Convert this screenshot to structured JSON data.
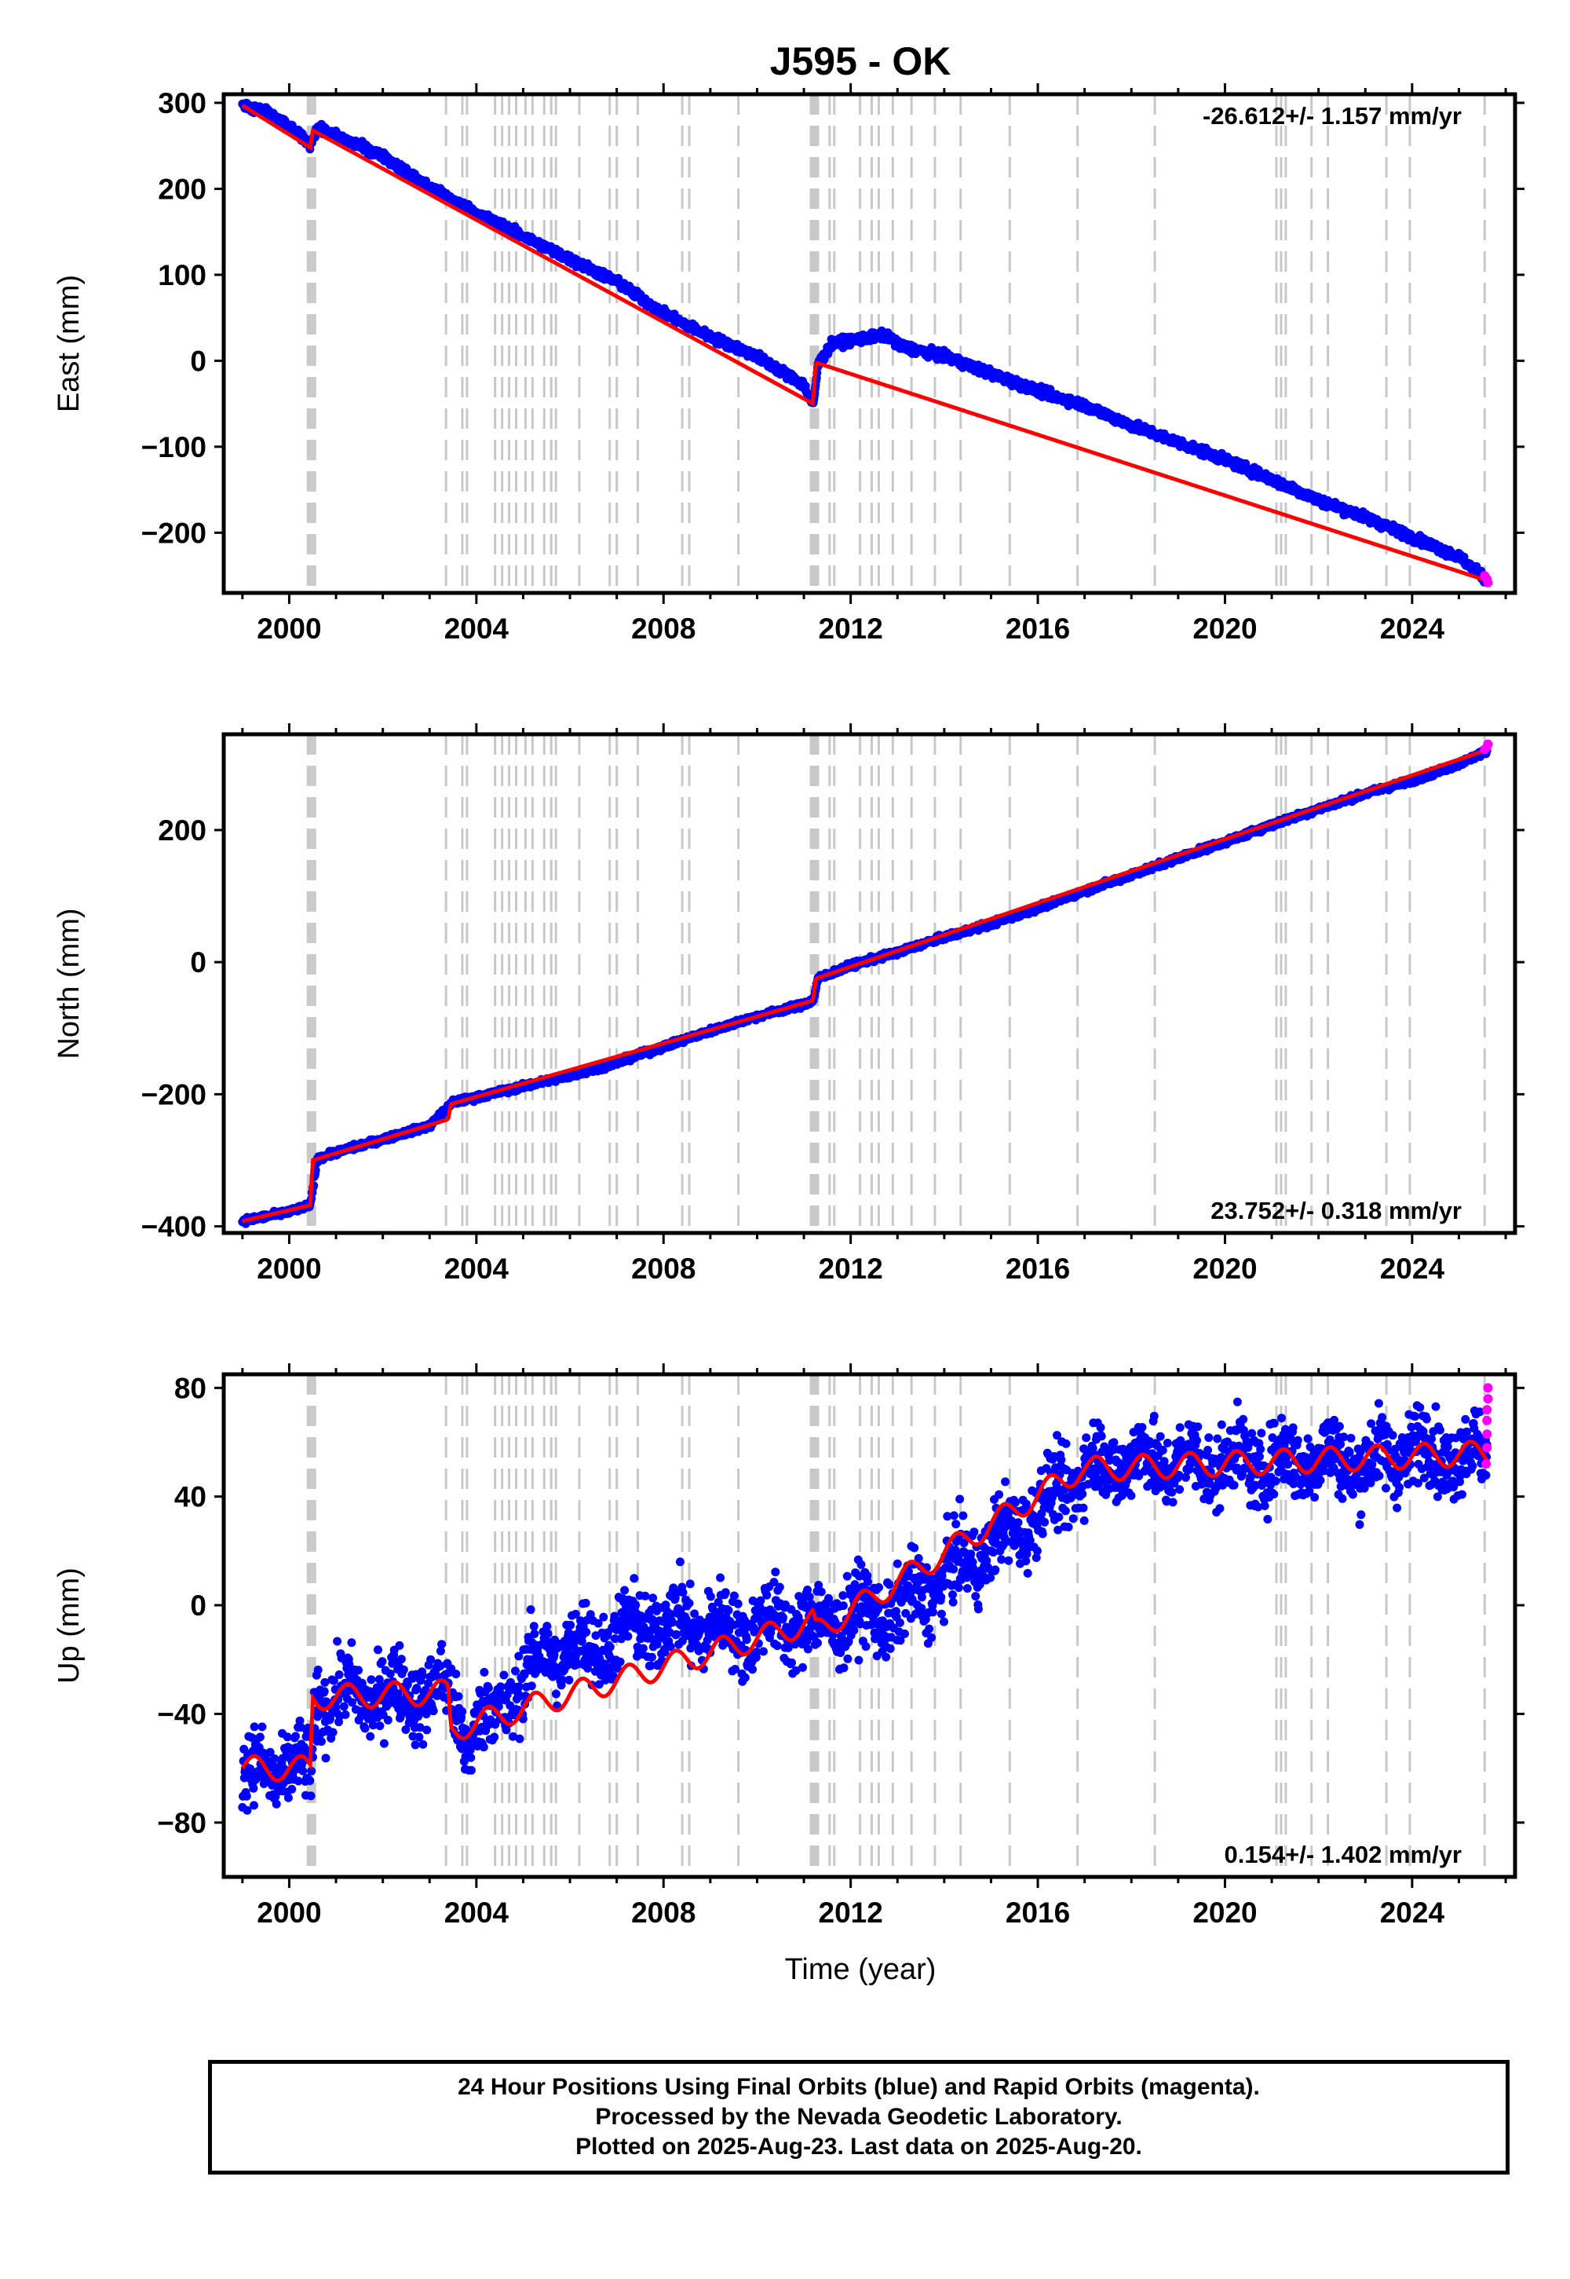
{
  "title": "J595 - OK",
  "xlabel": "Time (year)",
  "colors": {
    "final": "#0000ff",
    "rapid": "#ff00ff",
    "model": "#ff0000",
    "steps": "#c8c8c8"
  },
  "x_ticks": [
    "2000",
    "2004",
    "2008",
    "2012",
    "2016",
    "2020",
    "2024"
  ],
  "footer": {
    "line1": "24 Hour Positions Using Final Orbits (blue) and Rapid Orbits (magenta).",
    "line2": "Processed by the Nevada Geodetic Laboratory.",
    "line3": "Plotted on 2025-Aug-23. Last data on 2025-Aug-20."
  },
  "chart_data": [
    {
      "type": "scatter",
      "panel": "East",
      "title": "J595 - OK",
      "xlabel": "",
      "ylabel": "East (mm)",
      "xlim": [
        1998.6,
        2026.2
      ],
      "ylim": [
        -270,
        310
      ],
      "yticks": [
        "300",
        "200",
        "100",
        "0",
        "−100",
        "−200"
      ],
      "rate_label": "-26.612+/- 1.157 mm/yr",
      "rate_position": "top-right",
      "series": [
        {
          "name": "Final Orbits (blue)",
          "x": [
            1999.0,
            1999.5,
            2000.0,
            2000.45,
            2000.6,
            2001.0,
            2002.0,
            2003.0,
            2004.0,
            2005.0,
            2006.0,
            2007.0,
            2008.0,
            2009.0,
            2010.0,
            2011.0,
            2011.2,
            2011.3,
            2011.6,
            2012.0,
            2012.8,
            2013.0,
            2014.0,
            2015.0,
            2016.0,
            2017.0,
            2018.0,
            2019.0,
            2020.0,
            2021.0,
            2022.0,
            2023.0,
            2024.0,
            2025.0,
            2025.6
          ],
          "values": [
            298,
            290,
            272,
            252,
            270,
            262,
            238,
            202,
            172,
            145,
            118,
            92,
            55,
            28,
            5,
            -28,
            -52,
            -5,
            20,
            24,
            30,
            18,
            5,
            -15,
            -35,
            -52,
            -75,
            -95,
            -115,
            -138,
            -162,
            -182,
            -205,
            -228,
            -255
          ]
        },
        {
          "name": "Rapid Orbits (magenta)",
          "x": [
            2025.55,
            2025.6,
            2025.62
          ],
          "values": [
            -250,
            -254,
            -258
          ]
        },
        {
          "name": "Model",
          "x": [
            1999.0,
            2000.45,
            2000.5,
            2011.2,
            2011.25,
            2025.62
          ],
          "values": [
            297,
            248,
            268,
            -50,
            -2,
            -256
          ]
        }
      ]
    },
    {
      "type": "scatter",
      "panel": "North",
      "xlabel": "",
      "ylabel": "North (mm)",
      "xlim": [
        1998.6,
        2026.2
      ],
      "ylim": [
        -410,
        345
      ],
      "yticks": [
        "200",
        "0",
        "−200",
        "−400"
      ],
      "rate_label": "23.752+/- 0.318 mm/yr",
      "rate_position": "bottom-right",
      "series": [
        {
          "name": "Final Orbits (blue)",
          "x": [
            1999.0,
            2000.0,
            2000.45,
            2000.6,
            2001.0,
            2002.0,
            2003.0,
            2003.5,
            2004.0,
            2005.0,
            2006.0,
            2007.0,
            2008.0,
            2009.0,
            2010.0,
            2011.0,
            2011.2,
            2011.3,
            2012.0,
            2013.0,
            2014.0,
            2015.0,
            2016.0,
            2017.0,
            2018.0,
            2019.0,
            2020.0,
            2021.0,
            2022.0,
            2023.0,
            2024.0,
            2025.0,
            2025.6
          ],
          "values": [
            -392,
            -378,
            -368,
            -298,
            -288,
            -268,
            -248,
            -212,
            -205,
            -188,
            -172,
            -152,
            -128,
            -104,
            -82,
            -64,
            -58,
            -25,
            -5,
            15,
            38,
            58,
            82,
            108,
            132,
            158,
            182,
            208,
            232,
            255,
            275,
            300,
            320
          ]
        },
        {
          "name": "Rapid Orbits (magenta)",
          "x": [
            2025.55,
            2025.6,
            2025.62
          ],
          "values": [
            322,
            326,
            330
          ]
        },
        {
          "name": "Model",
          "x": [
            1999.0,
            2000.45,
            2000.5,
            2003.4,
            2003.45,
            2011.2,
            2011.25,
            2025.62
          ],
          "values": [
            -392,
            -368,
            -300,
            -238,
            -215,
            -58,
            -25,
            322
          ]
        }
      ]
    },
    {
      "type": "scatter",
      "panel": "Up",
      "xlabel": "Time (year)",
      "ylabel": "Up (mm)",
      "xlim": [
        1998.6,
        2026.2
      ],
      "ylim": [
        -100,
        85
      ],
      "yticks": [
        "80",
        "40",
        "0",
        "−40",
        "−80"
      ],
      "rate_label": "0.154+/- 1.402 mm/yr",
      "rate_position": "bottom-right",
      "series": [
        {
          "name": "Final Orbits (blue)",
          "x": [
            1999.0,
            2000.0,
            2000.45,
            2000.6,
            2002.0,
            2003.4,
            2003.8,
            2004.5,
            2005.5,
            2006.5,
            2007.5,
            2008.5,
            2009.5,
            2010.5,
            2011.2,
            2012.0,
            2013.0,
            2014.0,
            2015.0,
            2016.0,
            2017.0,
            2018.0,
            2019.0,
            2020.0,
            2021.0,
            2022.0,
            2023.0,
            2024.0,
            2025.0,
            2025.6
          ],
          "values": [
            -62,
            -60,
            -62,
            -34,
            -33,
            -32,
            -48,
            -38,
            -18,
            -15,
            -8,
            -6,
            -10,
            -6,
            -8,
            -4,
            -2,
            10,
            22,
            35,
            50,
            54,
            52,
            53,
            52,
            55,
            52,
            58,
            55,
            56
          ]
        },
        {
          "name": "Rapid Orbits (magenta)",
          "x": [
            2025.58,
            2025.6,
            2025.6,
            2025.6,
            2025.6,
            2025.62,
            2025.62
          ],
          "values": [
            52,
            58,
            63,
            68,
            72,
            76,
            80
          ]
        },
        {
          "name": "Model",
          "x": [
            1999.0,
            2000.45,
            2000.5,
            2003.4,
            2003.45,
            2011.2,
            2011.25,
            2016.9,
            2025.62
          ],
          "values": [
            -60,
            -60,
            -34,
            -32,
            -46,
            -6,
            -10,
            50,
            56
          ]
        }
      ]
    }
  ],
  "steps_x": [
    2000.4,
    2000.45,
    2000.5,
    2000.55,
    2003.35,
    2003.7,
    2003.8,
    2004.4,
    2004.55,
    2004.7,
    2004.85,
    2005.05,
    2005.2,
    2005.45,
    2005.6,
    2005.7,
    2006.2,
    2006.85,
    2007.0,
    2007.45,
    2008.4,
    2008.55,
    2009.6,
    2011.15,
    2011.2,
    2011.25,
    2011.3,
    2011.55,
    2011.65,
    2012.2,
    2012.45,
    2012.6,
    2012.9,
    2013.3,
    2013.8,
    2014.35,
    2015.4,
    2016.85,
    2018.5,
    2021.1,
    2021.2,
    2021.3,
    2021.85,
    2022.2,
    2023.45,
    2023.95,
    2025.55
  ]
}
